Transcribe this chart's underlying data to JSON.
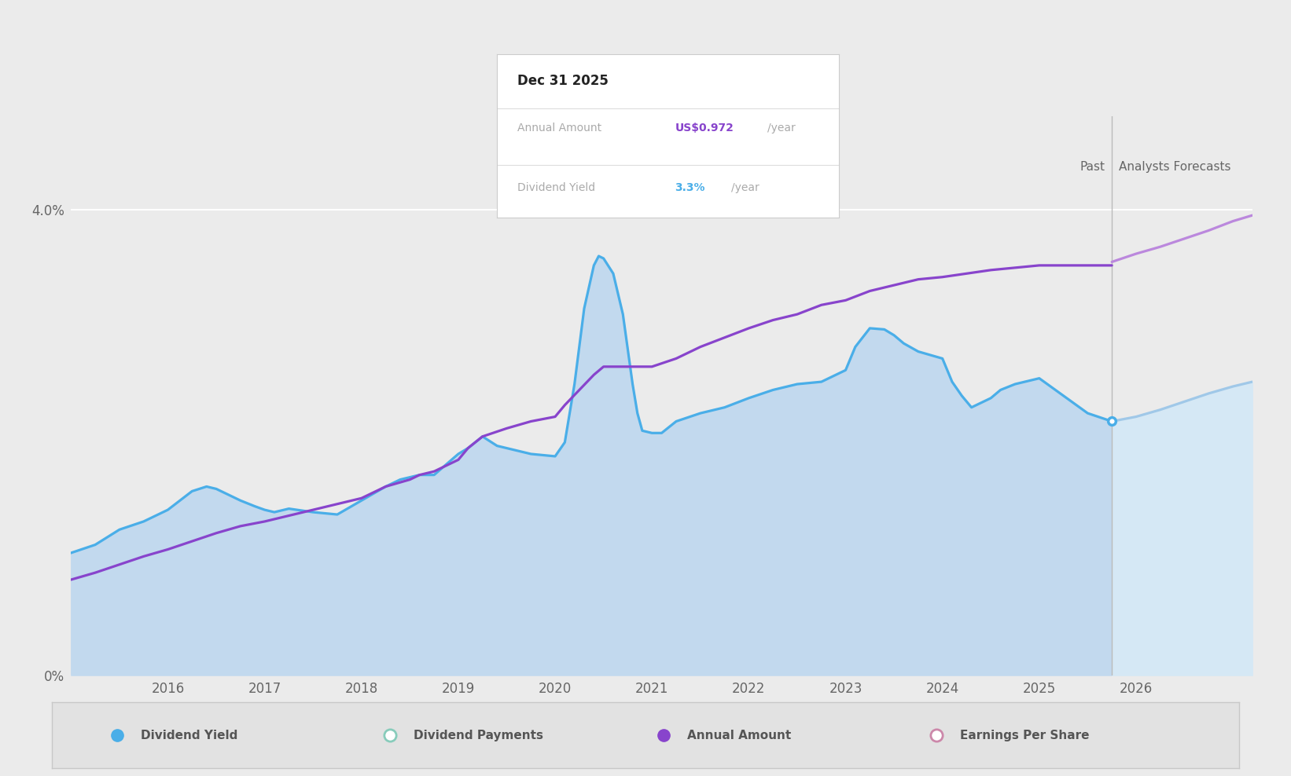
{
  "background_color": "#ebebeb",
  "plot_bg_color": "#ebebeb",
  "blue_line_color": "#4aaee8",
  "purple_line_color": "#8844cc",
  "forecast_blue_color": "#a0c8e8",
  "forecast_purple_color": "#bb88dd",
  "fill_past_color": "#c2d9ee",
  "fill_forecast_color": "#d5e8f5",
  "divider_x": 2025.75,
  "dot_x": 2025.75,
  "dot_y": 2.18,
  "xmin": 2015.0,
  "xmax": 2027.2,
  "ylim": [
    0,
    4.8
  ],
  "xtick_years": [
    2016,
    2017,
    2018,
    2019,
    2020,
    2021,
    2022,
    2023,
    2024,
    2025,
    2026
  ],
  "tooltip": {
    "date": "Dec 31 2025",
    "annual_amount_label": "Annual Amount",
    "annual_amount_value": "US$0.972",
    "annual_amount_suffix": "/year",
    "dividend_yield_label": "Dividend Yield",
    "dividend_yield_value": "3.3%",
    "dividend_yield_suffix": "/year",
    "annual_amount_color": "#8844cc",
    "dividend_yield_color": "#4aaee8"
  },
  "legend": [
    {
      "label": "Dividend Yield",
      "color": "#4aaee8",
      "filled": true
    },
    {
      "label": "Dividend Payments",
      "color": "#88ccbb",
      "filled": false
    },
    {
      "label": "Annual Amount",
      "color": "#8844cc",
      "filled": true
    },
    {
      "label": "Earnings Per Share",
      "color": "#cc88aa",
      "filled": false
    }
  ],
  "dividend_yield_past": {
    "x": [
      2015.0,
      2015.25,
      2015.5,
      2015.75,
      2016.0,
      2016.25,
      2016.4,
      2016.5,
      2016.75,
      2016.9,
      2017.0,
      2017.1,
      2017.25,
      2017.5,
      2017.75,
      2018.0,
      2018.25,
      2018.4,
      2018.5,
      2018.6,
      2018.75,
      2019.0,
      2019.1,
      2019.25,
      2019.4,
      2019.5,
      2019.75,
      2020.0,
      2020.1,
      2020.2,
      2020.3,
      2020.4,
      2020.45,
      2020.5,
      2020.6,
      2020.7,
      2020.75,
      2020.8,
      2020.85,
      2020.9,
      2021.0,
      2021.1,
      2021.25,
      2021.5,
      2021.75,
      2022.0,
      2022.25,
      2022.5,
      2022.75,
      2023.0,
      2023.1,
      2023.25,
      2023.4,
      2023.5,
      2023.6,
      2023.75,
      2024.0,
      2024.1,
      2024.2,
      2024.3,
      2024.5,
      2024.6,
      2024.75,
      2025.0,
      2025.25,
      2025.5,
      2025.75
    ],
    "y": [
      1.05,
      1.12,
      1.25,
      1.32,
      1.42,
      1.58,
      1.62,
      1.6,
      1.5,
      1.45,
      1.42,
      1.4,
      1.43,
      1.4,
      1.38,
      1.5,
      1.62,
      1.68,
      1.7,
      1.72,
      1.72,
      1.9,
      1.95,
      2.05,
      1.97,
      1.95,
      1.9,
      1.88,
      2.0,
      2.5,
      3.15,
      3.52,
      3.6,
      3.58,
      3.45,
      3.1,
      2.8,
      2.5,
      2.25,
      2.1,
      2.08,
      2.08,
      2.18,
      2.25,
      2.3,
      2.38,
      2.45,
      2.5,
      2.52,
      2.62,
      2.82,
      2.98,
      2.97,
      2.92,
      2.85,
      2.78,
      2.72,
      2.52,
      2.4,
      2.3,
      2.38,
      2.45,
      2.5,
      2.55,
      2.4,
      2.25,
      2.18
    ]
  },
  "dividend_yield_forecast": {
    "x": [
      2025.75,
      2026.0,
      2026.25,
      2026.5,
      2026.75,
      2027.0,
      2027.2
    ],
    "y": [
      2.18,
      2.22,
      2.28,
      2.35,
      2.42,
      2.48,
      2.52
    ]
  },
  "annual_amount_past": {
    "x": [
      2015.0,
      2015.25,
      2015.5,
      2015.75,
      2016.0,
      2016.25,
      2016.5,
      2016.75,
      2017.0,
      2017.25,
      2017.5,
      2017.75,
      2018.0,
      2018.25,
      2018.5,
      2018.6,
      2018.75,
      2019.0,
      2019.1,
      2019.25,
      2019.5,
      2019.75,
      2020.0,
      2020.1,
      2020.25,
      2020.4,
      2020.5,
      2020.6,
      2020.75,
      2020.85,
      2021.0,
      2021.25,
      2021.5,
      2021.75,
      2022.0,
      2022.25,
      2022.5,
      2022.75,
      2023.0,
      2023.25,
      2023.5,
      2023.75,
      2024.0,
      2024.25,
      2024.5,
      2024.75,
      2025.0,
      2025.25,
      2025.5,
      2025.75
    ],
    "y": [
      0.82,
      0.88,
      0.95,
      1.02,
      1.08,
      1.15,
      1.22,
      1.28,
      1.32,
      1.37,
      1.42,
      1.47,
      1.52,
      1.62,
      1.68,
      1.72,
      1.75,
      1.85,
      1.95,
      2.05,
      2.12,
      2.18,
      2.22,
      2.32,
      2.45,
      2.58,
      2.65,
      2.65,
      2.65,
      2.65,
      2.65,
      2.72,
      2.82,
      2.9,
      2.98,
      3.05,
      3.1,
      3.18,
      3.22,
      3.3,
      3.35,
      3.4,
      3.42,
      3.45,
      3.48,
      3.5,
      3.52,
      3.52,
      3.52,
      3.52
    ]
  },
  "annual_amount_forecast": {
    "x": [
      2025.75,
      2026.0,
      2026.25,
      2026.5,
      2026.75,
      2027.0,
      2027.2
    ],
    "y": [
      3.55,
      3.62,
      3.68,
      3.75,
      3.82,
      3.9,
      3.95
    ]
  }
}
